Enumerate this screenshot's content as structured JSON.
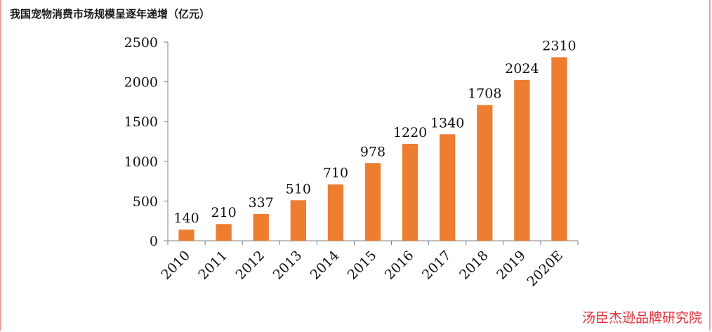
{
  "chart_data": {
    "type": "bar",
    "title": "我国宠物消费市场规模呈逐年递增（亿元）",
    "categories": [
      "2010",
      "2011",
      "2012",
      "2013",
      "2014",
      "2015",
      "2016",
      "2017",
      "2018",
      "2019",
      "2020E"
    ],
    "values": [
      140,
      210,
      337,
      510,
      710,
      978,
      1220,
      1340,
      1708,
      2024,
      2310
    ],
    "ylim": [
      0,
      2500
    ],
    "yticks": [
      0,
      500,
      1000,
      1500,
      2000,
      2500
    ],
    "grid": false,
    "bar_color": "#ed7d31",
    "data_labels": true
  },
  "watermark": "汤臣杰逊品牌研究院"
}
